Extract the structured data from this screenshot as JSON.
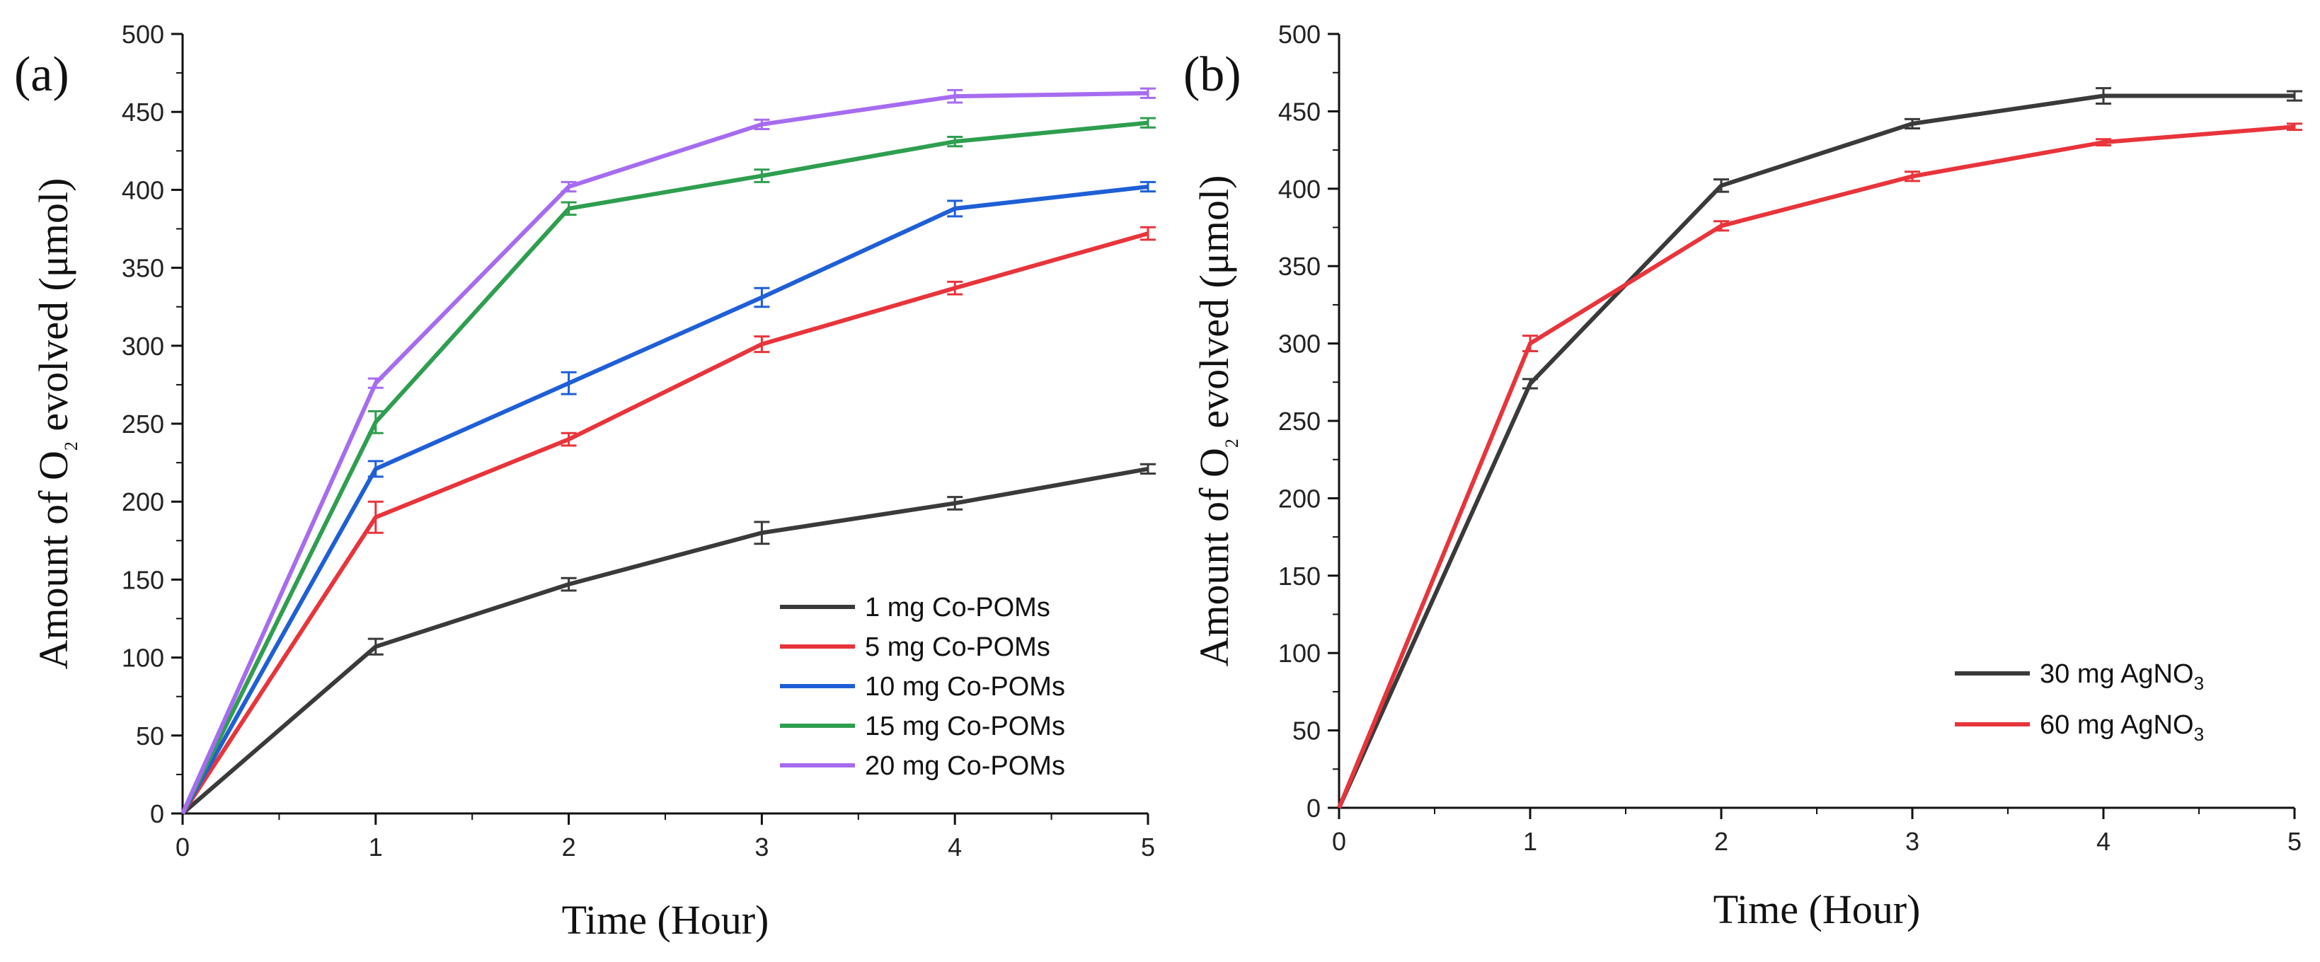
{
  "chart_data": [
    {
      "type": "line",
      "panel_label": "(a)",
      "xlabel": "Time (Hour)",
      "ylabel_prefix": "Amount of O",
      "ylabel_sub": "2",
      "ylabel_suffix": " evolved (μmol)",
      "xlim": [
        0,
        5
      ],
      "ylim": [
        0,
        500
      ],
      "x_ticks": [
        "0",
        "1",
        "2",
        "3",
        "4",
        "5"
      ],
      "y_ticks": [
        "0",
        "50",
        "100",
        "150",
        "200",
        "250",
        "300",
        "350",
        "400",
        "450",
        "500"
      ],
      "legend_position": "bottom-right",
      "x": [
        0,
        1,
        2,
        3,
        4,
        5
      ],
      "series": [
        {
          "name": "1 mg Co-POMs",
          "color": "#3a3a3a",
          "values": [
            0,
            107,
            147,
            180,
            199,
            221
          ],
          "errors": [
            0,
            5,
            4,
            7,
            4,
            3
          ]
        },
        {
          "name": "5 mg Co-POMs",
          "color": "#e8343b",
          "values": [
            0,
            190,
            240,
            301,
            337,
            372
          ],
          "errors": [
            0,
            10,
            4,
            5,
            4,
            4
          ]
        },
        {
          "name": "10 mg Co-POMs",
          "color": "#1f5fd6",
          "values": [
            0,
            221,
            276,
            331,
            388,
            402
          ],
          "errors": [
            0,
            5,
            7,
            6,
            5,
            3
          ]
        },
        {
          "name": "15 mg Co-POMs",
          "color": "#2e9e4f",
          "values": [
            0,
            251,
            388,
            409,
            431,
            443
          ],
          "errors": [
            0,
            7,
            4,
            4,
            3,
            3
          ]
        },
        {
          "name": "20 mg Co-POMs",
          "color": "#a66cf0",
          "values": [
            0,
            276,
            402,
            442,
            460,
            462
          ],
          "errors": [
            0,
            3,
            3,
            3,
            4,
            3
          ]
        }
      ]
    },
    {
      "type": "line",
      "panel_label": "(b)",
      "xlabel": "Time (Hour)",
      "ylabel_prefix": "Amount of O",
      "ylabel_sub": "2",
      "ylabel_suffix": " evolved (μmol)",
      "xlim": [
        0,
        5
      ],
      "ylim": [
        0,
        500
      ],
      "x_ticks": [
        "0",
        "1",
        "2",
        "3",
        "4",
        "5"
      ],
      "y_ticks": [
        "0",
        "50",
        "100",
        "150",
        "200",
        "250",
        "300",
        "350",
        "400",
        "450",
        "500"
      ],
      "legend_position": "bottom-right",
      "x": [
        0,
        1,
        2,
        3,
        4,
        5
      ],
      "series": [
        {
          "name": "30 mg AgNO",
          "name_sub": "3",
          "color": "#3a3a3a",
          "values": [
            0,
            274,
            402,
            442,
            460,
            460
          ],
          "errors": [
            0,
            3,
            4,
            3,
            5,
            3
          ]
        },
        {
          "name": "60 mg AgNO",
          "name_sub": "3",
          "color": "#e8343b",
          "values": [
            0,
            300,
            376,
            408,
            430,
            440
          ],
          "errors": [
            0,
            5,
            3,
            3,
            2,
            2
          ]
        }
      ]
    }
  ]
}
